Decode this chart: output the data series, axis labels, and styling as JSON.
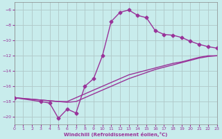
{
  "background_color": "#c8ecec",
  "grid_color": "#b0c8c8",
  "line_color": "#993399",
  "xlabel": "Windchill (Refroidissement éolien,°C)",
  "xlim": [
    0,
    23
  ],
  "ylim": [
    -21,
    -5
  ],
  "xticks": [
    0,
    1,
    2,
    3,
    4,
    5,
    6,
    7,
    8,
    9,
    10,
    11,
    12,
    13,
    14,
    15,
    16,
    17,
    18,
    19,
    20,
    21,
    22,
    23
  ],
  "yticks": [
    -20,
    -18,
    -16,
    -14,
    -12,
    -10,
    -8,
    -6
  ],
  "line1_x": [
    0,
    3,
    4,
    5,
    6,
    7,
    8,
    9,
    10,
    11,
    12,
    13,
    14,
    15,
    16,
    17,
    18,
    19,
    20,
    21,
    22,
    23
  ],
  "line1_y": [
    -17.5,
    -18.0,
    -18.2,
    -20.2,
    -19.0,
    -19.5,
    -16.0,
    -15.0,
    -12.0,
    -7.5,
    -6.3,
    -6.0,
    -6.7,
    -7.0,
    -8.7,
    -9.2,
    -9.3,
    -9.6,
    -10.1,
    -10.5,
    -10.8,
    -11.0
  ],
  "line2_x": [
    0,
    1,
    2,
    3,
    4,
    5,
    6,
    7,
    8,
    9,
    10,
    11,
    12,
    13,
    14,
    15,
    16,
    17,
    18,
    19,
    20,
    21,
    22,
    23
  ],
  "line2_y": [
    -17.5,
    -17.6,
    -17.7,
    -17.8,
    -17.9,
    -18.0,
    -18.0,
    -17.5,
    -17.0,
    -16.5,
    -16.0,
    -15.5,
    -15.0,
    -14.5,
    -14.2,
    -13.9,
    -13.6,
    -13.3,
    -13.0,
    -12.8,
    -12.5,
    -12.2,
    -12.0,
    -12.0
  ],
  "line3_x": [
    0,
    1,
    2,
    3,
    4,
    5,
    6,
    7,
    8,
    9,
    10,
    11,
    12,
    13,
    14,
    15,
    16,
    17,
    18,
    19,
    20,
    21,
    22,
    23
  ],
  "line3_y": [
    -17.5,
    -17.6,
    -17.7,
    -17.8,
    -17.9,
    -18.0,
    -18.1,
    -18.0,
    -17.5,
    -17.0,
    -16.5,
    -16.0,
    -15.5,
    -15.0,
    -14.6,
    -14.2,
    -13.8,
    -13.5,
    -13.2,
    -12.9,
    -12.6,
    -12.3,
    -12.1,
    -12.0
  ],
  "marker": "D",
  "markersize": 2.5,
  "linewidth": 1.0
}
